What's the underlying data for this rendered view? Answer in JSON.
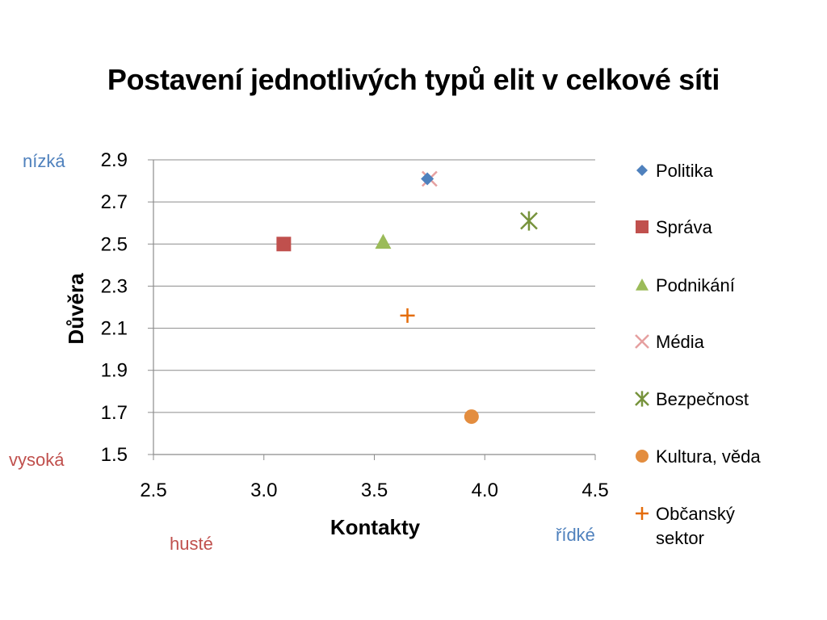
{
  "slide": {
    "title": "Postavení jednotlivých typů elit v celkové síti",
    "annotations": {
      "y_top": "nízká",
      "y_bottom": "vysoká",
      "x_left": "husté",
      "x_right": "řídké"
    },
    "colors": {
      "annotation_blue": "#4f81bd",
      "annotation_red": "#c0504d"
    }
  },
  "chart_data": {
    "type": "scatter",
    "title": "Postavení jednotlivých typů elit v celkové síti",
    "xlabel": "Kontakty",
    "ylabel": "Důvěra",
    "xlim": [
      2.5,
      4.5
    ],
    "ylim": [
      1.5,
      2.9
    ],
    "xticks": [
      "2.5",
      "3.0",
      "3.5",
      "4.0",
      "4.5"
    ],
    "yticks": [
      "2.9",
      "2.7",
      "2.5",
      "2.3",
      "2.1",
      "1.9",
      "1.7",
      "1.5"
    ],
    "grid": "horizontal",
    "legend_position": "right",
    "series": [
      {
        "name": "Politika",
        "marker": "diamond",
        "color": "#4f81bd",
        "x": 3.74,
        "y": 2.81
      },
      {
        "name": "Správa",
        "marker": "square",
        "color": "#c0504d",
        "x": 3.09,
        "y": 2.5
      },
      {
        "name": "Podnikání",
        "marker": "triangle",
        "color": "#9bbb59",
        "x": 3.54,
        "y": 2.51
      },
      {
        "name": "Média",
        "marker": "x",
        "color": "#e6a0a0",
        "x": 3.75,
        "y": 2.81
      },
      {
        "name": "Bezpečnost",
        "marker": "star",
        "color": "#77933c",
        "x": 4.2,
        "y": 2.61
      },
      {
        "name": "Kultura, věda",
        "marker": "circle",
        "color": "#e38d3f",
        "x": 3.94,
        "y": 1.68
      },
      {
        "name": "Občanský sektor",
        "marker": "plus",
        "color": "#e46c0a",
        "x": 3.65,
        "y": 2.16
      }
    ]
  }
}
